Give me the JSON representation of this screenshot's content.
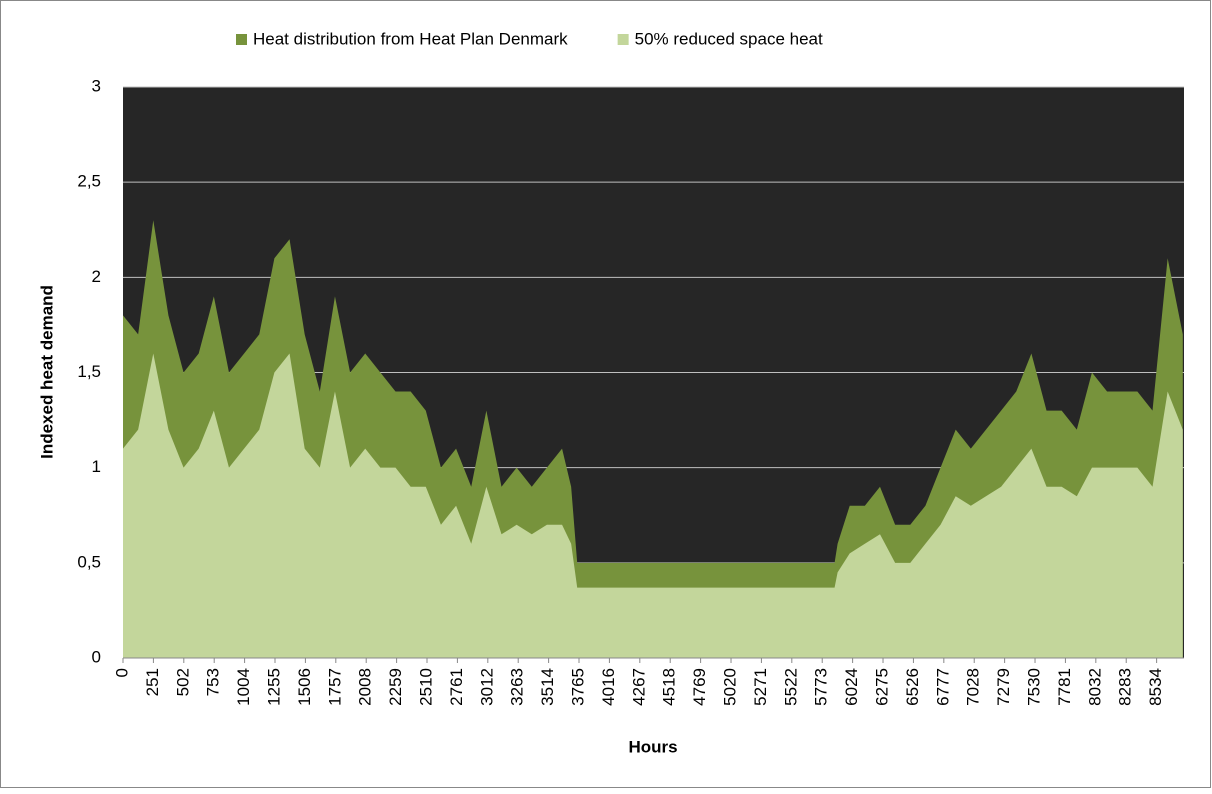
{
  "chart_data": {
    "type": "area",
    "xlabel": "Hours",
    "ylabel": "Indexed heat demand",
    "x": [
      0,
      125,
      250,
      375,
      500,
      625,
      750,
      875,
      1000,
      1125,
      1250,
      1375,
      1500,
      1625,
      1750,
      1875,
      2000,
      2125,
      2250,
      2375,
      2500,
      2625,
      2750,
      2875,
      3000,
      3125,
      3250,
      3375,
      3500,
      3625,
      3700,
      3750,
      4000,
      4250,
      4500,
      4750,
      5000,
      5250,
      5500,
      5750,
      5875,
      5900,
      6000,
      6125,
      6250,
      6375,
      6500,
      6625,
      6750,
      6875,
      7000,
      7125,
      7250,
      7375,
      7500,
      7625,
      7750,
      7875,
      8000,
      8125,
      8250,
      8375,
      8500,
      8625,
      8750
    ],
    "series": [
      {
        "name": "Heat  distribution from Heat Plan Denmark",
        "color": "#77933c",
        "values": [
          1.8,
          1.7,
          2.3,
          1.8,
          1.5,
          1.6,
          1.9,
          1.5,
          1.6,
          1.7,
          2.1,
          2.2,
          1.7,
          1.4,
          1.9,
          1.5,
          1.6,
          1.5,
          1.4,
          1.4,
          1.3,
          1.0,
          1.1,
          0.9,
          1.3,
          0.9,
          1.0,
          0.9,
          1.0,
          1.1,
          0.9,
          0.5,
          0.5,
          0.5,
          0.5,
          0.5,
          0.5,
          0.5,
          0.5,
          0.5,
          0.5,
          0.6,
          0.8,
          0.8,
          0.9,
          0.7,
          0.7,
          0.8,
          1.0,
          1.2,
          1.1,
          1.2,
          1.3,
          1.4,
          1.6,
          1.3,
          1.3,
          1.2,
          1.5,
          1.4,
          1.4,
          1.4,
          1.3,
          2.1,
          1.7
        ]
      },
      {
        "name": "50% reduced space heat",
        "color": "#c3d69b",
        "values": [
          1.1,
          1.2,
          1.6,
          1.2,
          1.0,
          1.1,
          1.3,
          1.0,
          1.1,
          1.2,
          1.5,
          1.6,
          1.1,
          1.0,
          1.4,
          1.0,
          1.1,
          1.0,
          1.0,
          0.9,
          0.9,
          0.7,
          0.8,
          0.6,
          0.9,
          0.65,
          0.7,
          0.65,
          0.7,
          0.7,
          0.6,
          0.37,
          0.37,
          0.37,
          0.37,
          0.37,
          0.37,
          0.37,
          0.37,
          0.37,
          0.37,
          0.45,
          0.55,
          0.6,
          0.65,
          0.5,
          0.5,
          0.6,
          0.7,
          0.85,
          0.8,
          0.85,
          0.9,
          1.0,
          1.1,
          0.9,
          0.9,
          0.85,
          1.0,
          1.0,
          1.0,
          1.0,
          0.9,
          1.4,
          1.2
        ]
      }
    ],
    "xlim": [
      0,
      8760
    ],
    "xticks": [
      0,
      251,
      502,
      753,
      1004,
      1255,
      1506,
      1757,
      2008,
      2259,
      2510,
      2761,
      3012,
      3263,
      3514,
      3765,
      4016,
      4267,
      4518,
      4769,
      5020,
      5271,
      5522,
      5773,
      6024,
      6275,
      6526,
      6777,
      7028,
      7279,
      7530,
      7781,
      8032,
      8283,
      8534
    ],
    "ylim": [
      0,
      3
    ],
    "yticks": [
      0,
      {
        "value": 0.5,
        "label": "0,5"
      },
      1,
      {
        "value": 1.5,
        "label": "1,5"
      },
      2,
      {
        "value": 2.5,
        "label": "2,5"
      },
      3
    ],
    "grid": true,
    "plot_background": "#262626",
    "legend": "top"
  }
}
